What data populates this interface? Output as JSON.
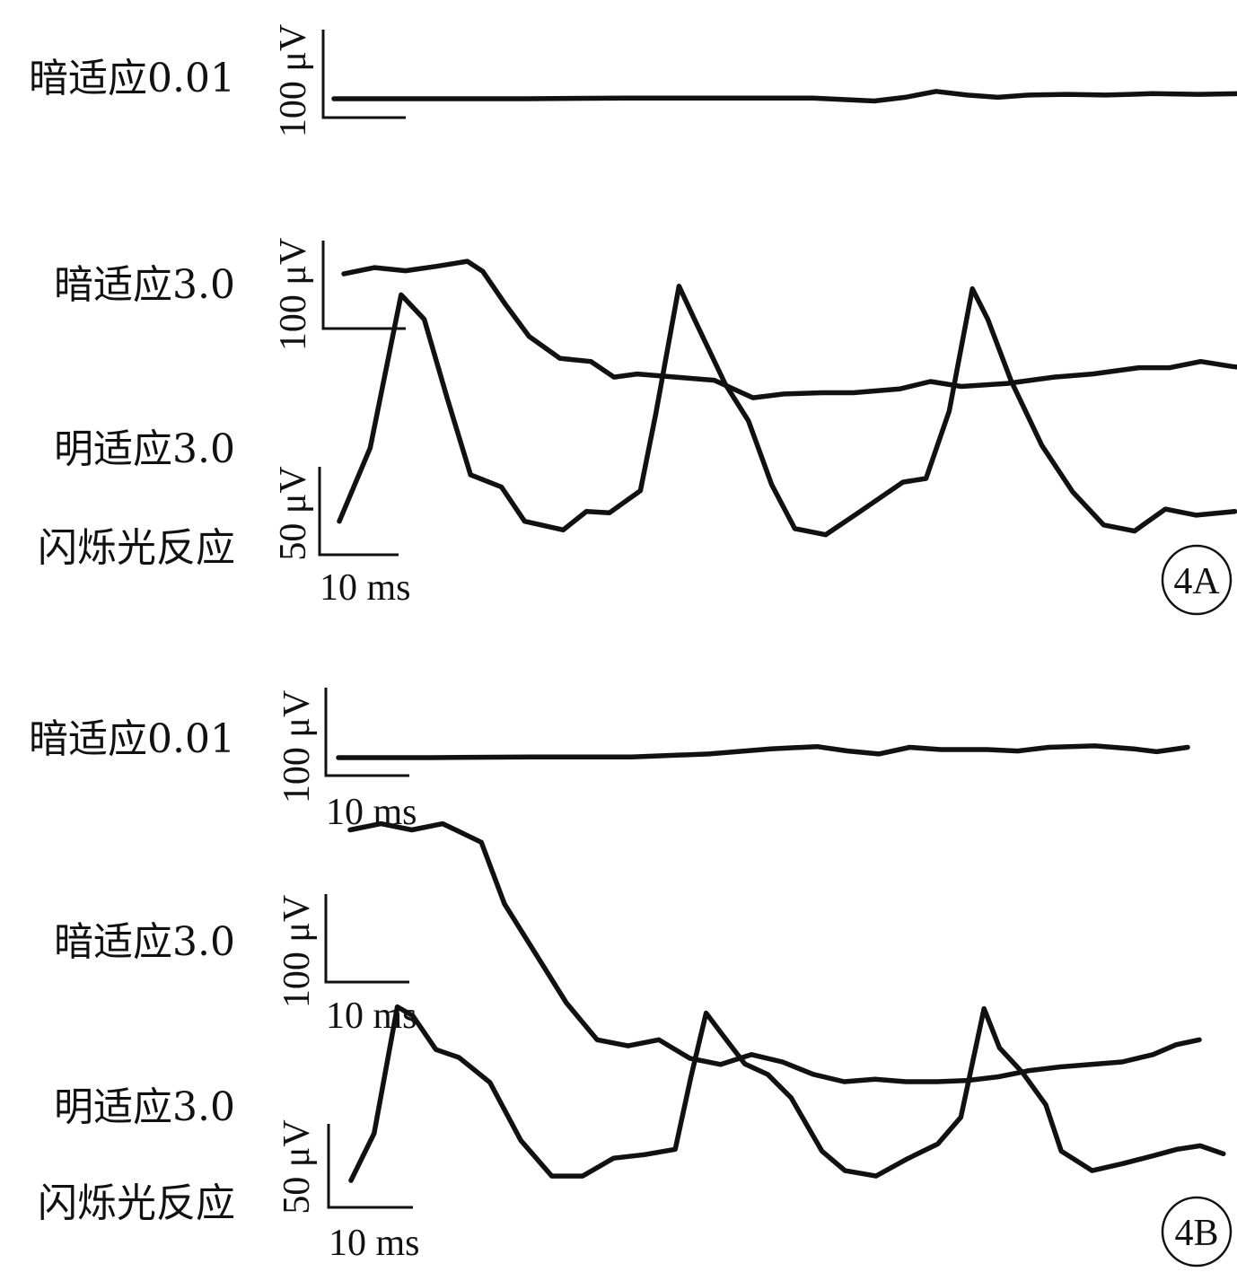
{
  "chart_data": [
    {
      "type": "line",
      "panel": "4A",
      "traces": [
        {
          "label": "暗适应0.01",
          "y_scale": "100 μV",
          "x_scale": "",
          "points": [
            [
              0,
              0
            ],
            [
              12,
              0
            ],
            [
              25,
              0
            ],
            [
              38,
              1
            ],
            [
              50,
              1
            ],
            [
              62,
              1
            ],
            [
              70,
              -3
            ],
            [
              74,
              2
            ],
            [
              78,
              10
            ],
            [
              82,
              5
            ],
            [
              86,
              2
            ],
            [
              90,
              5
            ],
            [
              95,
              6
            ],
            [
              100,
              5
            ],
            [
              106,
              7
            ],
            [
              112,
              6
            ],
            [
              118,
              7
            ],
            [
              124,
              10
            ],
            [
              128,
              6
            ],
            [
              133,
              7
            ],
            [
              138,
              7
            ]
          ]
        },
        {
          "label": "暗适应3.0",
          "y_scale": "100 μV",
          "x_scale": "",
          "points": [
            [
              0,
              360
            ],
            [
              4,
              370
            ],
            [
              8,
              365
            ],
            [
              12,
              372
            ],
            [
              16,
              380
            ],
            [
              18,
              364
            ],
            [
              21,
              310
            ],
            [
              24,
              260
            ],
            [
              28,
              225
            ],
            [
              32,
              220
            ],
            [
              35,
              195
            ],
            [
              38,
              200
            ],
            [
              43,
              195
            ],
            [
              48,
              190
            ],
            [
              53,
              162
            ],
            [
              57,
              168
            ],
            [
              62,
              170
            ],
            [
              66,
              170
            ],
            [
              72,
              176
            ],
            [
              76,
              188
            ],
            [
              80,
              180
            ],
            [
              86,
              185
            ],
            [
              92,
              195
            ],
            [
              97,
              200
            ],
            [
              103,
              210
            ],
            [
              107,
              210
            ],
            [
              111,
              220
            ],
            [
              115,
              212
            ],
            [
              120,
              205
            ],
            [
              124,
              200
            ]
          ]
        },
        {
          "label": "明适应3.0 闪烁光反应",
          "y_scale": "50 μV",
          "x_scale": "10 ms",
          "points": [
            [
              0,
              20
            ],
            [
              4,
              80
            ],
            [
              8,
              205
            ],
            [
              11,
              185
            ],
            [
              14,
              120
            ],
            [
              17,
              58
            ],
            [
              21,
              48
            ],
            [
              24,
              20
            ],
            [
              29,
              13
            ],
            [
              32,
              28
            ],
            [
              35,
              27
            ],
            [
              39,
              45
            ],
            [
              41,
              108
            ],
            [
              44,
              212
            ],
            [
              46,
              185
            ],
            [
              50,
              132
            ],
            [
              53,
              102
            ],
            [
              56,
              50
            ],
            [
              59,
              14
            ],
            [
              63,
              9
            ],
            [
              67,
              26
            ],
            [
              73,
              52
            ],
            [
              76,
              55
            ],
            [
              79,
              110
            ],
            [
              82,
              210
            ],
            [
              84,
              185
            ],
            [
              87,
              135
            ],
            [
              91,
              82
            ],
            [
              95,
              44
            ],
            [
              99,
              17
            ],
            [
              103,
              12
            ],
            [
              107,
              30
            ],
            [
              111,
              25
            ],
            [
              116,
              28
            ]
          ]
        }
      ]
    },
    {
      "type": "line",
      "panel": "4B",
      "traces": [
        {
          "label": "暗适应0.01",
          "y_scale": "100 μV",
          "x_scale": "10 ms",
          "points": [
            [
              0,
              0
            ],
            [
              12,
              0
            ],
            [
              25,
              1
            ],
            [
              38,
              1
            ],
            [
              48,
              5
            ],
            [
              56,
              12
            ],
            [
              62,
              15
            ],
            [
              66,
              9
            ],
            [
              70,
              5
            ],
            [
              74,
              14
            ],
            [
              78,
              11
            ],
            [
              84,
              11
            ],
            [
              88,
              9
            ],
            [
              92,
              14
            ],
            [
              98,
              16
            ],
            [
              103,
              12
            ],
            [
              106,
              8
            ],
            [
              110,
              14
            ]
          ]
        },
        {
          "label": "暗适应3.0",
          "y_scale": "100 μV",
          "x_scale": "10 ms",
          "points": [
            [
              0,
              300
            ],
            [
              4,
              305
            ],
            [
              8,
              300
            ],
            [
              12,
              305
            ],
            [
              17,
              290
            ],
            [
              20,
              240
            ],
            [
              24,
              200
            ],
            [
              28,
              160
            ],
            [
              32,
              130
            ],
            [
              36,
              125
            ],
            [
              40,
              130
            ],
            [
              44,
              115
            ],
            [
              48,
              110
            ],
            [
              52,
              118
            ],
            [
              56,
              112
            ],
            [
              60,
              102
            ],
            [
              64,
              96
            ],
            [
              68,
              98
            ],
            [
              72,
              96
            ],
            [
              76,
              96
            ],
            [
              80,
              97
            ],
            [
              84,
              100
            ],
            [
              88,
              105
            ],
            [
              92,
              108
            ],
            [
              96,
              110
            ],
            [
              100,
              112
            ],
            [
              104,
              118
            ],
            [
              107,
              126
            ],
            [
              110,
              130
            ]
          ]
        },
        {
          "label": "明适应3.0 闪烁光反应",
          "y_scale": "50 μV",
          "x_scale": "10 ms",
          "points": [
            [
              0,
              5
            ],
            [
              3,
              58
            ],
            [
              6,
              200
            ],
            [
              8,
              190
            ],
            [
              11,
              152
            ],
            [
              14,
              143
            ],
            [
              18,
              115
            ],
            [
              22,
              50
            ],
            [
              26,
              10
            ],
            [
              30,
              10
            ],
            [
              34,
              30
            ],
            [
              38,
              34
            ],
            [
              42,
              40
            ],
            [
              44,
              120
            ],
            [
              46,
              193
            ],
            [
              48,
              170
            ],
            [
              51,
              136
            ],
            [
              54,
              124
            ],
            [
              57,
              98
            ],
            [
              61,
              38
            ],
            [
              64,
              16
            ],
            [
              68,
              10
            ],
            [
              72,
              29
            ],
            [
              76,
              46
            ],
            [
              79,
              76
            ],
            [
              82,
              198
            ],
            [
              84,
              154
            ],
            [
              87,
              126
            ],
            [
              90,
              90
            ],
            [
              92,
              38
            ],
            [
              96,
              16
            ],
            [
              100,
              24
            ],
            [
              104,
              33
            ],
            [
              107,
              40
            ],
            [
              110,
              44
            ],
            [
              113,
              35
            ]
          ]
        }
      ]
    }
  ]
}
